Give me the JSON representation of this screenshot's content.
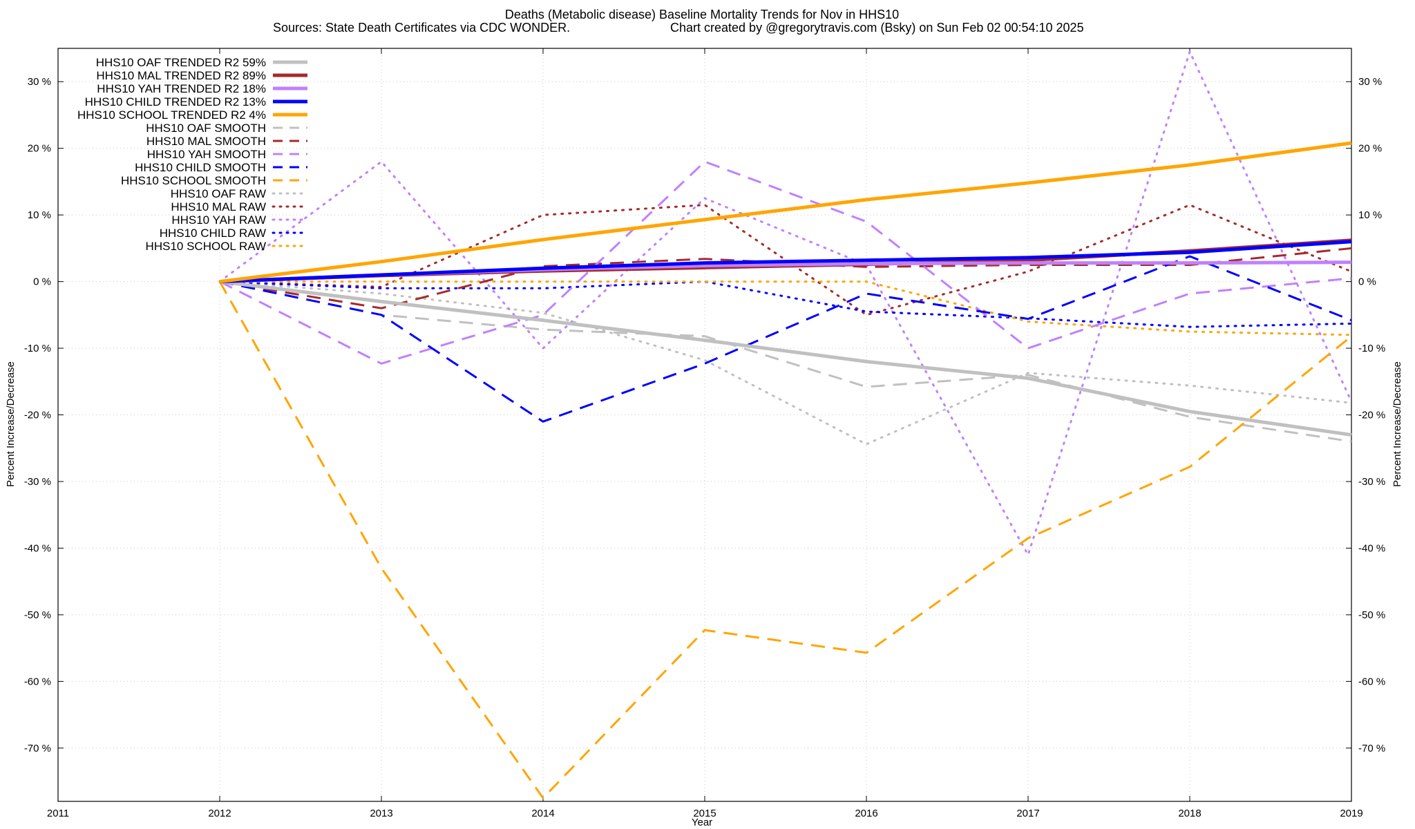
{
  "chart_data": {
    "type": "line",
    "title": "Deaths (Metabolic disease)  Baseline Mortality Trends for Nov in HHS10",
    "subtitle_left": "Sources: State Death Certificates via CDC WONDER.",
    "subtitle_right": "Chart created by @gregorytravis.com (Bsky) on Sun Feb 02 00:54:10 2025",
    "xlabel": "Year",
    "ylabel_left": "Percent Increase/Decrease",
    "ylabel_right": "Percent Increase/Decrease",
    "xlim": [
      2011,
      2019
    ],
    "ylim": [
      -78,
      35
    ],
    "x_ticks": [
      "2011",
      "2012",
      "2013",
      "2014",
      "2015",
      "2016",
      "2017",
      "2018",
      "2019"
    ],
    "y_ticks": [
      30,
      20,
      10,
      0,
      -10,
      -20,
      -30,
      -40,
      -50,
      -60,
      -70
    ],
    "y_tick_labels": [
      "30 %",
      "20 %",
      "10 %",
      "0 %",
      "-10 %",
      "-20 %",
      "-30 %",
      "-40 %",
      "-50 %",
      "-60 %",
      "-70 %"
    ],
    "grid": true,
    "legend_position": "top-left",
    "series": [
      {
        "name": "HHS10 OAF TRENDED R2  59%",
        "color": "#c0c0c0",
        "style": "solid",
        "width": 5,
        "x": [
          2012,
          2013,
          2014,
          2015,
          2016,
          2017,
          2018,
          2019
        ],
        "y": [
          0,
          -3,
          -5.8,
          -8.8,
          -12,
          -14.5,
          -19.5,
          -23
        ]
      },
      {
        "name": "HHS10 MAL TRENDED R2  89%",
        "color": "#a52a2a",
        "style": "solid",
        "width": 5,
        "x": [
          2012,
          2013,
          2014,
          2015,
          2016,
          2017,
          2018,
          2019
        ],
        "y": [
          0,
          0.9,
          1.6,
          2.1,
          2.6,
          3.2,
          4.6,
          6.2
        ]
      },
      {
        "name": "HHS10 YAH TRENDED R2  18%",
        "color": "#c080ff",
        "style": "solid",
        "width": 5,
        "x": [
          2012,
          2013,
          2014,
          2015,
          2016,
          2017,
          2018,
          2019
        ],
        "y": [
          0,
          1.0,
          1.8,
          2.4,
          2.7,
          2.8,
          2.8,
          2.9
        ]
      },
      {
        "name": "HHS10 CHILD TRENDED R2  13%",
        "color": "#0000ff",
        "style": "solid",
        "width": 5,
        "x": [
          2012,
          2013,
          2014,
          2015,
          2016,
          2017,
          2018,
          2019
        ],
        "y": [
          0,
          1.0,
          2.0,
          2.8,
          3.2,
          3.6,
          4.4,
          6.0
        ]
      },
      {
        "name": "HHS10 SCHOOL TRENDED R2  4%",
        "color": "#ffa500",
        "style": "solid",
        "width": 5,
        "x": [
          2012,
          2013,
          2014,
          2015,
          2016,
          2017,
          2018,
          2019
        ],
        "y": [
          0,
          3.0,
          6.3,
          9.3,
          12.3,
          14.8,
          17.5,
          20.8
        ]
      },
      {
        "name": "HHS10 OAF SMOOTH",
        "color": "#c0c0c0",
        "style": "dashed",
        "width": 3,
        "x": [
          2012,
          2013,
          2014,
          2015,
          2016,
          2017,
          2018,
          2019
        ],
        "y": [
          0,
          -5,
          -7.2,
          -8.2,
          -15.8,
          -14,
          -20.3,
          -24
        ]
      },
      {
        "name": "HHS10 MAL SMOOTH",
        "color": "#a52a2a",
        "style": "dashed",
        "width": 3,
        "x": [
          2012,
          2013,
          2014,
          2015,
          2016,
          2017,
          2018,
          2019
        ],
        "y": [
          0,
          -4,
          2.3,
          3.4,
          2.2,
          2.5,
          2.5,
          5.0
        ]
      },
      {
        "name": "HHS10 YAH SMOOTH",
        "color": "#c080ff",
        "style": "dashed",
        "width": 3,
        "x": [
          2012,
          2013,
          2014,
          2015,
          2016,
          2017,
          2018,
          2019
        ],
        "y": [
          0,
          -12.3,
          -5,
          18,
          9,
          -10,
          -1.8,
          0.5
        ]
      },
      {
        "name": "HHS10 CHILD SMOOTH",
        "color": "#0000ff",
        "style": "dashed",
        "width": 3,
        "x": [
          2012,
          2013,
          2014,
          2015,
          2016,
          2017,
          2018,
          2019
        ],
        "y": [
          0,
          -5,
          -21,
          -12.3,
          -1.8,
          -5.6,
          3.8,
          -5.8
        ]
      },
      {
        "name": "HHS10 SCHOOL SMOOTH",
        "color": "#ffa500",
        "style": "dashed",
        "width": 3,
        "x": [
          2012,
          2013,
          2014,
          2015,
          2016,
          2017,
          2018,
          2019
        ],
        "y": [
          0,
          -43,
          -77.5,
          -52.3,
          -55.7,
          -38.5,
          -27.8,
          -8.2
        ]
      },
      {
        "name": "HHS10 OAF RAW",
        "color": "#c0c0c0",
        "style": "dotted",
        "width": 3,
        "x": [
          2012,
          2013,
          2014,
          2015,
          2016,
          2017,
          2018,
          2019
        ],
        "y": [
          0,
          -1.8,
          -4.7,
          -11.8,
          -24.4,
          -13.7,
          -15.6,
          -18.2
        ]
      },
      {
        "name": "HHS10 MAL RAW",
        "color": "#a52a2a",
        "style": "dotted",
        "width": 3,
        "x": [
          2012,
          2013,
          2014,
          2015,
          2016,
          2017,
          2018,
          2019
        ],
        "y": [
          0,
          -0.8,
          10,
          11.5,
          -5,
          1.5,
          11.5,
          1.5
        ]
      },
      {
        "name": "HHS10 YAH RAW",
        "color": "#c080ff",
        "style": "dotted",
        "width": 3,
        "x": [
          2012,
          2013,
          2014,
          2015,
          2016,
          2017,
          2018,
          2019
        ],
        "y": [
          0,
          18,
          -10,
          12.5,
          2.5,
          -41,
          34.5,
          -18
        ]
      },
      {
        "name": "HHS10 CHILD RAW",
        "color": "#0000ff",
        "style": "dotted",
        "width": 3,
        "x": [
          2012,
          2013,
          2014,
          2015,
          2016,
          2017,
          2018,
          2019
        ],
        "y": [
          0,
          -1,
          -1,
          0,
          -4.5,
          -5.5,
          -6.8,
          -6.3
        ]
      },
      {
        "name": "HHS10 SCHOOL RAW",
        "color": "#ffa500",
        "style": "dotted",
        "width": 3,
        "x": [
          2012,
          2013,
          2014,
          2015,
          2016,
          2017,
          2018,
          2019
        ],
        "y": [
          0,
          0,
          0,
          0,
          0,
          -6,
          -7.5,
          -8
        ]
      }
    ]
  }
}
